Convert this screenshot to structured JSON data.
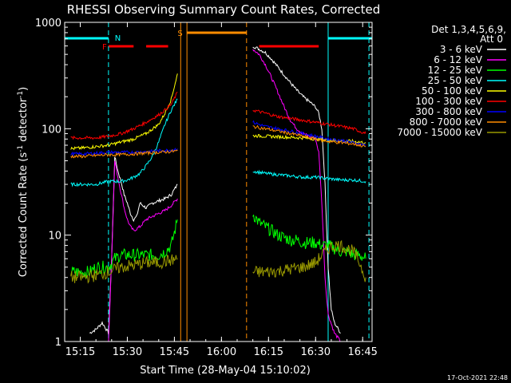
{
  "chart_data": {
    "type": "line",
    "title": "RHESSI Observing Summary Count Rates, Corrected",
    "xlabel": "Start Time (28-May-04 15:10:02)",
    "ylabel": "Corrected Count Rate (s⁻¹ detector⁻¹)",
    "ylabel_parts": [
      "Corrected Count Rate (s",
      "-1",
      " detector",
      "-1",
      ")"
    ],
    "y_scale": "log",
    "xlim": [
      "15:10:02",
      "16:48:00"
    ],
    "ylim": [
      1,
      1000
    ],
    "x_ticks": [
      "15:15",
      "15:30",
      "15:45",
      "16:00",
      "16:15",
      "16:30",
      "16:45"
    ],
    "y_ticks": [
      "1",
      "10",
      "100",
      "1000"
    ],
    "grid": false,
    "legend_position": "top-right",
    "legend_header": [
      "Det 1,3,4,5,6,9,",
      "Att 0"
    ],
    "footer_date": "17-Oct-2021 22:48",
    "flag_labels": {
      "F": "F",
      "N": "N",
      "S": "S"
    },
    "flags": {
      "F": [
        [
          "15:24",
          "15:32"
        ],
        [
          "15:36",
          "15:43"
        ],
        [
          "16:12",
          "16:31"
        ]
      ],
      "N": [
        [
          "15:10",
          "15:24"
        ],
        [
          "16:34",
          "16:48"
        ]
      ],
      "S": [
        [
          "15:49",
          "16:08"
        ]
      ]
    },
    "vertical_markers": [
      {
        "t": "15:24",
        "color": "#00ffff",
        "style": "dashed"
      },
      {
        "t": "15:47",
        "color": "#ff8c00",
        "style": "solid"
      },
      {
        "t": "15:49",
        "color": "#ff8c00",
        "style": "solid"
      },
      {
        "t": "16:08",
        "color": "#ff8c00",
        "style": "dashed"
      },
      {
        "t": "16:34",
        "color": "#00ffff",
        "style": "solid"
      },
      {
        "t": "16:47",
        "color": "#00ffff",
        "style": "dashed"
      }
    ],
    "series": [
      {
        "name": "3 - 6 keV",
        "color": "#ffffff",
        "t": [
          "15:18",
          "15:20",
          "15:22",
          "15:24",
          "15:25",
          "15:26",
          "15:27",
          "15:28",
          "15:29",
          "15:30",
          "15:31",
          "15:32",
          "15:33",
          "15:34",
          "15:36",
          "15:38",
          "15:40",
          "15:42",
          "15:44",
          "15:46",
          "16:10",
          "16:12",
          "16:14",
          "16:16",
          "16:18",
          "16:20",
          "16:22",
          "16:24",
          "16:26",
          "16:28",
          "16:30",
          "16:31",
          "16:32",
          "16:33",
          "16:34",
          "16:35",
          "16:36",
          "16:38"
        ],
        "v": [
          1.2,
          1.3,
          1.5,
          1.2,
          6,
          55,
          40,
          32,
          24,
          20,
          16,
          14,
          15,
          20,
          18,
          20,
          21,
          22,
          24,
          30,
          600,
          560,
          520,
          450,
          380,
          320,
          270,
          230,
          200,
          180,
          160,
          140,
          100,
          30,
          5,
          2,
          1.5,
          1.2
        ]
      },
      {
        "name": "6 - 12 keV",
        "color": "#ff00ff",
        "t": [
          "15:24",
          "15:25",
          "15:26",
          "15:27",
          "15:28",
          "15:29",
          "15:30",
          "15:31",
          "15:32",
          "15:34",
          "15:36",
          "15:38",
          "15:40",
          "15:42",
          "15:44",
          "15:46",
          "16:10",
          "16:12",
          "16:14",
          "16:16",
          "16:18",
          "16:20",
          "16:22",
          "16:24",
          "16:26",
          "16:28",
          "16:30",
          "16:31",
          "16:32",
          "16:33",
          "16:34",
          "16:36",
          "16:38"
        ],
        "v": [
          1,
          6,
          50,
          35,
          25,
          18,
          14,
          12,
          11,
          12,
          14,
          15,
          16,
          17,
          19,
          22,
          560,
          500,
          400,
          300,
          220,
          160,
          120,
          100,
          90,
          85,
          80,
          60,
          20,
          4,
          1.8,
          1.2,
          1
        ]
      },
      {
        "name": "12 - 25 keV",
        "color": "#00ff00",
        "t": [
          "15:12",
          "15:14",
          "15:16",
          "15:18",
          "15:20",
          "15:22",
          "15:24",
          "15:26",
          "15:28",
          "15:30",
          "15:32",
          "15:34",
          "15:36",
          "15:38",
          "15:40",
          "15:42",
          "15:44",
          "15:46",
          "16:10",
          "16:12",
          "16:14",
          "16:16",
          "16:18",
          "16:20",
          "16:22",
          "16:24",
          "16:26",
          "16:28",
          "16:30",
          "16:32",
          "16:34",
          "16:36",
          "16:38",
          "16:40",
          "16:42",
          "16:44",
          "16:46"
        ],
        "v": [
          4.5,
          4.5,
          4.5,
          4.5,
          5,
          5,
          5,
          6,
          6.5,
          6.5,
          6.5,
          6.5,
          6.5,
          6.5,
          6.5,
          7,
          8,
          14,
          16,
          13,
          12,
          11,
          10,
          9.5,
          9,
          9,
          8.5,
          8.5,
          8.5,
          8,
          8,
          7.5,
          7,
          7,
          6.5,
          6.5,
          6
        ]
      },
      {
        "name": "25 - 50 keV",
        "color": "#00ffff",
        "t": [
          "15:12",
          "15:16",
          "15:20",
          "15:24",
          "15:26",
          "15:28",
          "15:30",
          "15:32",
          "15:34",
          "15:36",
          "15:38",
          "15:40",
          "15:42",
          "15:44",
          "15:46",
          "16:10",
          "16:14",
          "16:18",
          "16:22",
          "16:26",
          "16:30",
          "16:34",
          "16:38",
          "16:42",
          "16:46"
        ],
        "v": [
          30,
          30,
          30,
          32,
          32,
          32,
          33,
          35,
          38,
          45,
          55,
          75,
          110,
          150,
          190,
          40,
          38,
          37,
          36,
          35,
          35,
          34,
          33,
          33,
          32
        ]
      },
      {
        "name": "50 - 100 keV",
        "color": "#ffff00",
        "t": [
          "15:12",
          "15:16",
          "15:20",
          "15:24",
          "15:28",
          "15:32",
          "15:36",
          "15:40",
          "15:42",
          "15:44",
          "15:46",
          "16:10",
          "16:14",
          "16:18",
          "16:22",
          "16:26",
          "16:30",
          "16:34",
          "16:38",
          "16:42",
          "16:46"
        ],
        "v": [
          65,
          66,
          68,
          70,
          75,
          80,
          90,
          110,
          140,
          190,
          330,
          86,
          85,
          84,
          83,
          82,
          80,
          78,
          77,
          76,
          74
        ]
      },
      {
        "name": "100 - 300 keV",
        "color": "#ff0000",
        "t": [
          "15:12",
          "15:16",
          "15:20",
          "15:24",
          "15:28",
          "15:32",
          "15:36",
          "15:40",
          "15:42",
          "15:44",
          "15:46",
          "16:10",
          "16:14",
          "16:18",
          "16:22",
          "16:26",
          "16:30",
          "16:34",
          "16:38",
          "16:42",
          "16:46"
        ],
        "v": [
          82,
          82,
          82,
          85,
          90,
          100,
          115,
          135,
          150,
          170,
          220,
          150,
          140,
          130,
          125,
          120,
          115,
          110,
          105,
          100,
          90
        ]
      },
      {
        "name": "300 - 800 keV",
        "color": "#0000ff",
        "t": [
          "15:12",
          "15:16",
          "15:20",
          "15:24",
          "15:28",
          "15:32",
          "15:36",
          "15:40",
          "15:44",
          "15:46",
          "16:10",
          "16:14",
          "16:18",
          "16:22",
          "16:26",
          "16:30",
          "16:34",
          "16:38",
          "16:42",
          "16:46"
        ],
        "v": [
          58,
          58,
          59,
          60,
          60,
          60,
          61,
          62,
          63,
          65,
          115,
          105,
          100,
          95,
          90,
          85,
          80,
          78,
          74,
          70
        ]
      },
      {
        "name": "800 - 7000 keV",
        "color": "#ff8c00",
        "t": [
          "15:12",
          "15:16",
          "15:20",
          "15:24",
          "15:28",
          "15:32",
          "15:36",
          "15:40",
          "15:44",
          "15:46",
          "16:10",
          "16:14",
          "16:18",
          "16:22",
          "16:26",
          "16:30",
          "16:34",
          "16:38",
          "16:42",
          "16:46"
        ],
        "v": [
          55,
          55,
          56,
          57,
          57,
          58,
          59,
          60,
          61,
          62,
          105,
          100,
          95,
          90,
          85,
          80,
          76,
          74,
          72,
          68
        ]
      },
      {
        "name": "7000 - 15000 keV",
        "color": "#999900",
        "t": [
          "15:12",
          "15:16",
          "15:20",
          "15:24",
          "15:28",
          "15:32",
          "15:36",
          "15:40",
          "15:44",
          "15:46",
          "16:10",
          "16:14",
          "16:18",
          "16:22",
          "16:26",
          "16:30",
          "16:32",
          "16:34",
          "16:36",
          "16:38",
          "16:40",
          "16:42",
          "16:44",
          "16:46"
        ],
        "v": [
          4,
          4,
          4.2,
          4.5,
          5,
          5.2,
          5.5,
          5.5,
          5.8,
          6,
          4.5,
          4.5,
          4.6,
          4.8,
          5,
          5.5,
          6.5,
          7.5,
          8,
          8,
          7.5,
          7,
          5.5,
          4
        ]
      }
    ]
  }
}
